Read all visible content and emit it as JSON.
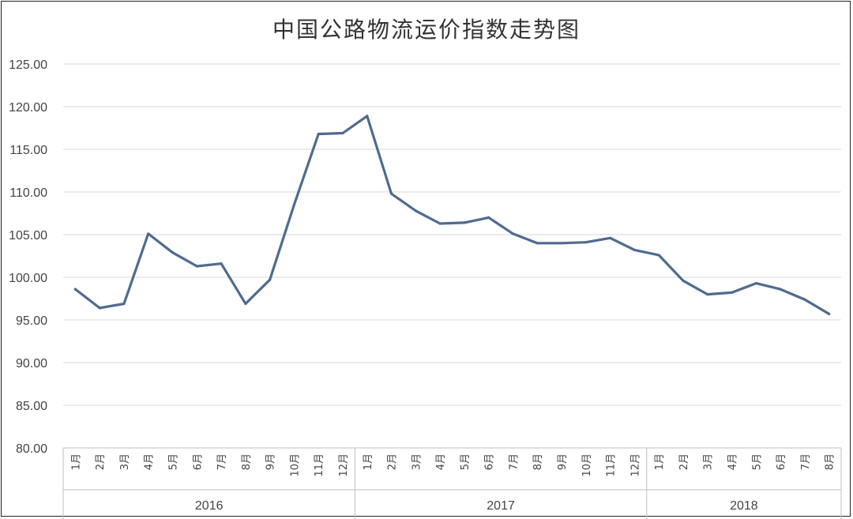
{
  "chart_data": {
    "type": "line",
    "title": "中国公路物流运价指数走势图",
    "ylim": [
      80,
      125
    ],
    "ytick_labels": [
      "80.00",
      "85.00",
      "90.00",
      "95.00",
      "100.00",
      "105.00",
      "110.00",
      "115.00",
      "120.00",
      "125.00"
    ],
    "grid": true,
    "line_color": "#4f6b8f",
    "grid_color": "#d9d9d9",
    "categories": [
      "1月",
      "2月",
      "3月",
      "4月",
      "5月",
      "6月",
      "7月",
      "8月",
      "9月",
      "10月",
      "11月",
      "12月",
      "1月",
      "2月",
      "3月",
      "4月",
      "5月",
      "6月",
      "7月",
      "8月",
      "9月",
      "10月",
      "11月",
      "12月",
      "1月",
      "2月",
      "3月",
      "4月",
      "5月",
      "6月",
      "7月",
      "8月"
    ],
    "groups": [
      {
        "label": "2016",
        "count": 12
      },
      {
        "label": "2017",
        "count": 12
      },
      {
        "label": "2018",
        "count": 8
      }
    ],
    "series": [
      {
        "values": [
          98.6,
          96.4,
          96.9,
          105.1,
          102.9,
          101.3,
          101.6,
          96.9,
          99.7,
          108.5,
          116.8,
          116.9,
          118.9,
          109.8,
          107.8,
          106.3,
          106.4,
          107.0,
          105.1,
          104.0,
          104.0,
          104.1,
          104.6,
          103.2,
          102.6,
          99.6,
          98.0,
          98.2,
          99.3,
          98.6,
          97.4,
          95.7
        ]
      }
    ]
  }
}
